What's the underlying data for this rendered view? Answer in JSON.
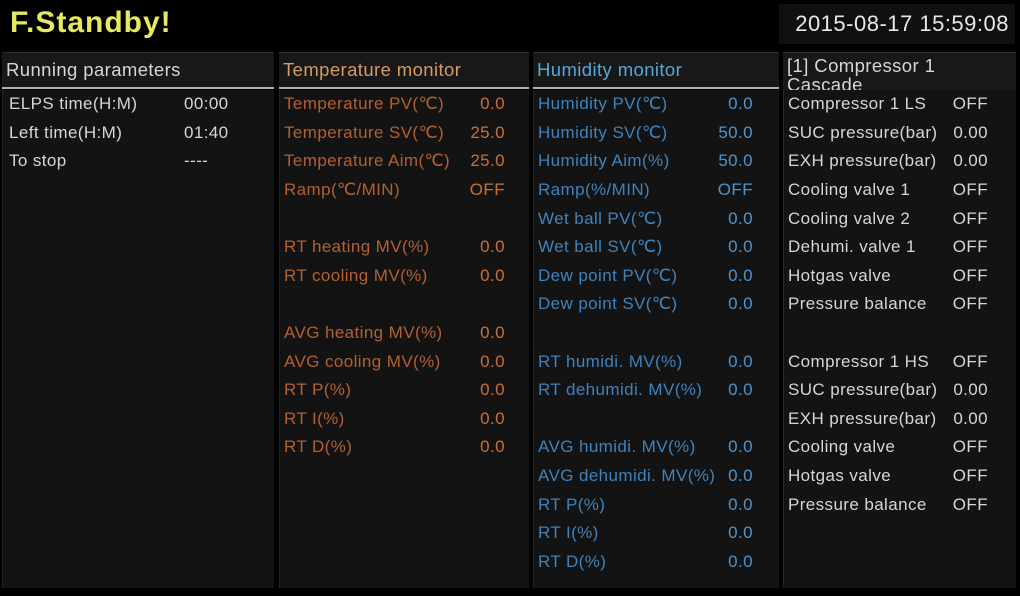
{
  "topbar": {
    "title": "F.Standby!",
    "datetime": "2015-08-17 15:59:08"
  },
  "colors": {
    "title_yellow": "#e6e95e",
    "datetime_white": "#e8e8e8",
    "white_text": "#d6d6d6",
    "header_underline": "#b2b2b2",
    "panel_bg": "#131313",
    "temp_header": "#d89a60",
    "temp_label": "#b2602e",
    "temp_value": "#c9712f",
    "humidity_header": "#54a8db",
    "humidity_label": "#3e83bd",
    "humidity_value": "#4e94cd"
  },
  "panels": [
    {
      "id": "running-parameters",
      "title": "Running parameters",
      "header_color": "#d6d6d6",
      "label_color": "#d6d6d6",
      "value_color": "#d6d6d6",
      "rows": [
        {
          "label": "ELPS time(H:M)",
          "value": "00:00"
        },
        {
          "label": "Left time(H:M)",
          "value": "01:40"
        },
        {
          "label": "To stop",
          "value": "----"
        }
      ]
    },
    {
      "id": "temperature-monitor",
      "title": "Temperature monitor",
      "header_color": "#d89a60",
      "label_color": "#b2602e",
      "value_color": "#c9712f",
      "rows": [
        {
          "label": "Temperature PV(℃)",
          "value": "0.0"
        },
        {
          "label": "Temperature SV(℃)",
          "value": "25.0"
        },
        {
          "label": "Temperature Aim(℃)",
          "value": "25.0"
        },
        {
          "label": "Ramp(℃/MIN)",
          "value": "OFF"
        },
        {
          "label": "",
          "value": ""
        },
        {
          "label": "RT heating MV(%)",
          "value": "0.0"
        },
        {
          "label": "RT cooling MV(%)",
          "value": "0.0"
        },
        {
          "label": "",
          "value": ""
        },
        {
          "label": "AVG heating MV(%)",
          "value": "0.0"
        },
        {
          "label": "AVG cooling MV(%)",
          "value": "0.0"
        },
        {
          "label": "RT P(%)",
          "value": "0.0"
        },
        {
          "label": "RT I(%)",
          "value": "0.0"
        },
        {
          "label": "RT D(%)",
          "value": "0.0"
        }
      ]
    },
    {
      "id": "humidity-monitor",
      "title": "Humidity monitor",
      "header_color": "#54a8db",
      "label_color": "#3e83bd",
      "value_color": "#4e94cd",
      "rows": [
        {
          "label": "Humidity PV(℃)",
          "value": "0.0"
        },
        {
          "label": "Humidity SV(℃)",
          "value": "50.0"
        },
        {
          "label": "Humidity Aim(%)",
          "value": "50.0"
        },
        {
          "label": "Ramp(%/MIN)",
          "value": "OFF"
        },
        {
          "label": "Wet ball PV(℃)",
          "value": "0.0"
        },
        {
          "label": "Wet ball SV(℃)",
          "value": "0.0"
        },
        {
          "label": "Dew point PV(℃)",
          "value": "0.0"
        },
        {
          "label": "Dew point SV(℃)",
          "value": "0.0"
        },
        {
          "label": "",
          "value": ""
        },
        {
          "label": "RT humidi. MV(%)",
          "value": "0.0"
        },
        {
          "label": "RT dehumidi. MV(%)",
          "value": "0.0"
        },
        {
          "label": "",
          "value": ""
        },
        {
          "label": "AVG humidi. MV(%)",
          "value": "0.0"
        },
        {
          "label": "AVG dehumidi. MV(%)",
          "value": "0.0"
        },
        {
          "label": "RT P(%)",
          "value": "0.0"
        },
        {
          "label": "RT I(%)",
          "value": "0.0"
        },
        {
          "label": "RT D(%)",
          "value": "0.0"
        }
      ]
    },
    {
      "id": "compressor-1-cascade",
      "title": "[1] Compressor 1",
      "title_line2": "Cascade",
      "header_color": "#d6d6d6",
      "label_color": "#d6d6d6",
      "value_color": "#d6d6d6",
      "rows": [
        {
          "label": "Compressor 1 LS",
          "value": "OFF"
        },
        {
          "label": "SUC pressure(bar)",
          "value": "0.00"
        },
        {
          "label": "EXH pressure(bar)",
          "value": "0.00"
        },
        {
          "label": "Cooling valve 1",
          "value": "OFF"
        },
        {
          "label": "Cooling valve 2",
          "value": "OFF"
        },
        {
          "label": "Dehumi. valve 1",
          "value": "OFF"
        },
        {
          "label": "Hotgas valve",
          "value": "OFF"
        },
        {
          "label": "Pressure balance",
          "value": "OFF"
        },
        {
          "label": "",
          "value": ""
        },
        {
          "label": "Compressor 1 HS",
          "value": "OFF"
        },
        {
          "label": "SUC pressure(bar)",
          "value": "0.00"
        },
        {
          "label": "EXH pressure(bar)",
          "value": "0.00"
        },
        {
          "label": "Cooling valve",
          "value": "OFF"
        },
        {
          "label": "Hotgas valve",
          "value": "OFF"
        },
        {
          "label": "Pressure balance",
          "value": "OFF"
        }
      ]
    }
  ]
}
